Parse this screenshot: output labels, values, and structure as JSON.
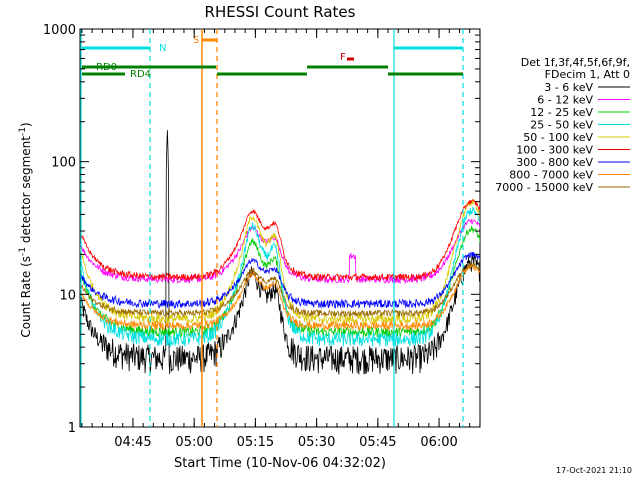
{
  "chart_data": {
    "type": "line",
    "title": "RHESSI Count Rates",
    "xlabel": "Start Time (10-Nov-06 04:32:02)",
    "ylabel_main": "Count Rate (s",
    "ylabel_sup1": "-1",
    "ylabel_mid": " detector segment",
    "ylabel_sup2": "-1",
    "ylabel_end": ")",
    "yscale": "log",
    "ylim": [
      1,
      1000
    ],
    "xlim_minutes": [
      0,
      98
    ],
    "y_ticks": [
      {
        "value": 1,
        "label": "1"
      },
      {
        "value": 10,
        "label": "10"
      },
      {
        "value": 100,
        "label": "100"
      },
      {
        "value": 1000,
        "label": "1000"
      }
    ],
    "x_ticks": [
      {
        "minute": 12.97,
        "label": "04:45"
      },
      {
        "minute": 27.97,
        "label": "05:00"
      },
      {
        "minute": 42.97,
        "label": "05:15"
      },
      {
        "minute": 57.97,
        "label": "05:30"
      },
      {
        "minute": 72.97,
        "label": "05:45"
      },
      {
        "minute": 87.97,
        "label": "06:00"
      }
    ],
    "legend_title_1": "Det 1f,3f,4f,5f,6f,9f,",
    "legend_title_2": "FDecim 1, Att 0",
    "series": [
      {
        "name": "3 - 6 keV",
        "color": "#000000",
        "base": 3.3,
        "peak": 21,
        "sprd": 0.55,
        "noise": 0.16
      },
      {
        "name": "6 - 12 keV",
        "color": "#ff00ff",
        "base": 13,
        "peak": 40,
        "sprd": 0.3,
        "noise": 0.05
      },
      {
        "name": "12 - 25 keV",
        "color": "#00cc00",
        "base": 5.2,
        "peak": 38,
        "sprd": 0.5,
        "noise": 0.06
      },
      {
        "name": "25 - 50 keV",
        "color": "#00e0e0",
        "base": 4.6,
        "peak": 55,
        "sprd": 0.6,
        "noise": 0.08
      },
      {
        "name": "50 - 100 keV",
        "color": "#d8c800",
        "base": 6.5,
        "peak": 62,
        "sprd": 0.55,
        "noise": 0.06
      },
      {
        "name": "100 - 300 keV",
        "color": "#ff0000",
        "base": 13.5,
        "peak": 58,
        "sprd": 0.45,
        "noise": 0.04
      },
      {
        "name": "300 - 800 keV",
        "color": "#0000ff",
        "base": 8.5,
        "peak": 22,
        "sprd": 0.45,
        "noise": 0.05
      },
      {
        "name": "800 - 7000 keV",
        "color": "#ff8800",
        "base": 5.8,
        "peak": 18,
        "sprd": 0.45,
        "noise": 0.05
      },
      {
        "name": "7000 - 15000 keV",
        "color": "#9a6a00",
        "base": 7.2,
        "peak": 18.5,
        "sprd": 0.4,
        "noise": 0.04
      }
    ],
    "annotations": [
      {
        "name": "N",
        "color": "#00e0e0"
      },
      {
        "name": "S",
        "color": "#ff8800"
      },
      {
        "name": "F",
        "color": "#cc0000"
      },
      {
        "name": "RD0",
        "color": "#008000"
      },
      {
        "name": "RD4",
        "color": "#008000"
      }
    ],
    "timestamp": "17-Oct-2021 21:10"
  }
}
